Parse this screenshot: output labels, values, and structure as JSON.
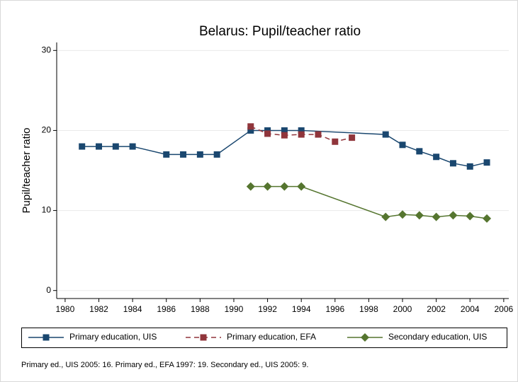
{
  "chart_data": {
    "type": "line",
    "title": "Belarus: Pupil/teacher ratio",
    "y_label": "Pupil/teacher ratio",
    "note": "Primary ed., UIS 2005: 16. Primary ed., EFA 1997: 19. Secondary ed., UIS 2005: 9.",
    "xlim": [
      1979.5,
      2006.3
    ],
    "xticks": [
      1980,
      1982,
      1984,
      1986,
      1988,
      1990,
      1992,
      1994,
      1996,
      1998,
      2000,
      2002,
      2004,
      2006
    ],
    "ylim": [
      -1,
      31
    ],
    "yticks": [
      0,
      10,
      20,
      30
    ],
    "grid": true,
    "legend": "bottom",
    "series": [
      {
        "name": "Primary education, UIS",
        "color": "#1a476f",
        "marker": "square",
        "line_style": "solid",
        "x": [
          1981,
          1982,
          1983,
          1984,
          1986,
          1987,
          1988,
          1989,
          1991,
          1992,
          1993,
          1994,
          1999,
          2000,
          2001,
          2002,
          2003,
          2004,
          2005
        ],
        "values": [
          18,
          18,
          18,
          18,
          17,
          17,
          17,
          17,
          20,
          20,
          20,
          20,
          19.5,
          18.2,
          17.4,
          16.7,
          15.9,
          15.5,
          16
        ]
      },
      {
        "name": "Primary education, EFA",
        "color": "#90353b",
        "marker": "square",
        "line_style": "dashed",
        "x": [
          1991,
          1992,
          1993,
          1994,
          1995,
          1996,
          1997
        ],
        "values": [
          20.5,
          19.6,
          19.4,
          19.5,
          19.5,
          18.6,
          19.1
        ]
      },
      {
        "name": "Secondary education, UIS",
        "color": "#55752f",
        "marker": "diamond",
        "line_style": "solid",
        "x": [
          1991,
          1992,
          1993,
          1994,
          1999,
          2000,
          2001,
          2002,
          2003,
          2004,
          2005
        ],
        "values": [
          13,
          13,
          13,
          13,
          9.2,
          9.5,
          9.4,
          9.2,
          9.4,
          9.3,
          9
        ]
      }
    ]
  }
}
